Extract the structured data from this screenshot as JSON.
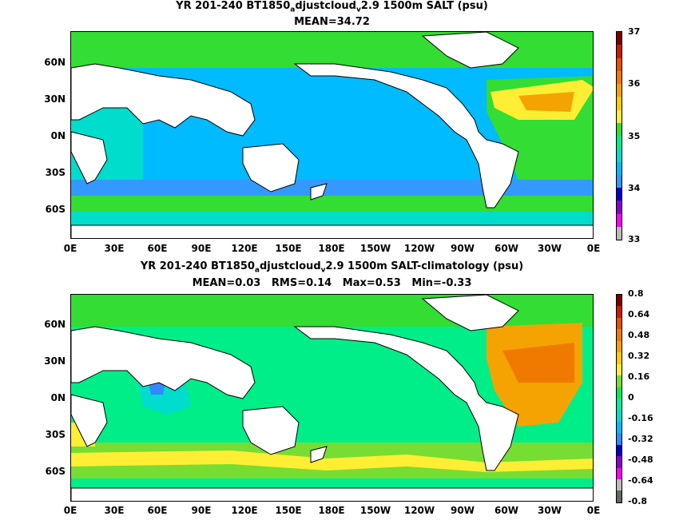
{
  "panel1": {
    "title_pre": "YR 201-240 BT1850",
    "title_sub1": "a",
    "title_mid": "djustcloud",
    "title_sub2": "v",
    "title_post": "2.9 1500m SALT (psu)",
    "stats": "MEAN=34.72",
    "colorbar_labels": [
      "37",
      "36",
      "35",
      "34",
      "33"
    ],
    "colorbar_colors": [
      "#7a0000",
      "#cc1a00",
      "#e65000",
      "#f07a00",
      "#f5a300",
      "#ffcc00",
      "#ffee33",
      "#33dd33",
      "#00ee88",
      "#00ddcc",
      "#00bbff",
      "#3399ff",
      "#0000cc",
      "#8800cc",
      "#ff00ff",
      "#bbbbbb"
    ]
  },
  "panel2": {
    "title_pre": "YR 201-240 BT1850",
    "title_sub1": "a",
    "title_mid": "djustcloud",
    "title_sub2": "v",
    "title_post": "2.9 1500m SALT-climatology (psu)",
    "stats": "MEAN=0.03   RMS=0.14   Max=0.53   Min=-0.33",
    "colorbar_labels": [
      "0.8",
      "0.64",
      "0.48",
      "0.32",
      "0.16",
      "0",
      "-0.16",
      "-0.32",
      "-0.48",
      "-0.64",
      "-0.8"
    ],
    "colorbar_colors": [
      "#7a0000",
      "#cc1a00",
      "#e65000",
      "#f07a00",
      "#f5a300",
      "#ffcc00",
      "#ffee33",
      "#77dd33",
      "#00ee55",
      "#00ee99",
      "#00ddcc",
      "#00bbff",
      "#3388ff",
      "#0000cc",
      "#8800cc",
      "#ff00ff",
      "#bbbbbb",
      "#666666"
    ]
  },
  "axes": {
    "lat_labels": [
      "60N",
      "30N",
      "0N",
      "30S",
      "60S"
    ],
    "lon_labels": [
      "0E",
      "30E",
      "60E",
      "90E",
      "120E",
      "150E",
      "180E",
      "150W",
      "120W",
      "90W",
      "60W",
      "30W",
      "0E"
    ]
  }
}
